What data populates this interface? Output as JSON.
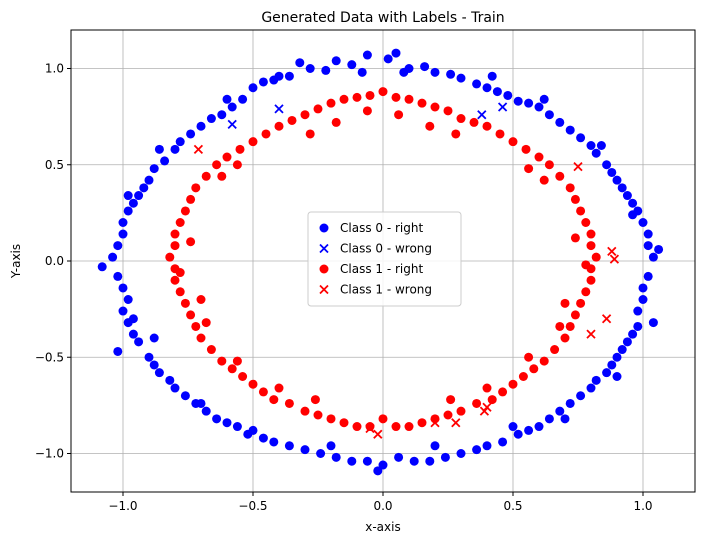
{
  "chart_data": {
    "type": "scatter",
    "title": "Generated Data with Labels - Train",
    "xlabel": "x-axis",
    "ylabel": "Y-axis",
    "xlim": [
      -1.2,
      1.2
    ],
    "ylim": [
      -1.2,
      1.2
    ],
    "xticks": [
      -1.0,
      -0.5,
      0.0,
      0.5,
      1.0
    ],
    "yticks": [
      -1.0,
      -0.5,
      0.0,
      0.5,
      1.0
    ],
    "xtick_labels": [
      "−1.0",
      "−0.5",
      "0.0",
      "0.5",
      "1.0"
    ],
    "ytick_labels": [
      "−1.0",
      "−0.5",
      "0.0",
      "0.5",
      "1.0"
    ],
    "grid": true,
    "legend_placement": "center",
    "series": [
      {
        "name": "Class 0 - right",
        "marker": "circle",
        "color": "#0000ff",
        "points": [
          [
            0.02,
            1.05
          ],
          [
            0.05,
            1.08
          ],
          [
            -0.06,
            1.07
          ],
          [
            0.1,
            1.0
          ],
          [
            -0.12,
            1.02
          ],
          [
            0.16,
            1.01
          ],
          [
            -0.18,
            1.04
          ],
          [
            0.2,
            0.98
          ],
          [
            -0.22,
            0.99
          ],
          [
            0.26,
            0.97
          ],
          [
            -0.28,
            1.0
          ],
          [
            0.3,
            0.95
          ],
          [
            -0.32,
            1.03
          ],
          [
            0.36,
            0.92
          ],
          [
            -0.36,
            0.96
          ],
          [
            0.4,
            0.9
          ],
          [
            -0.42,
            0.94
          ],
          [
            0.44,
            0.88
          ],
          [
            -0.46,
            0.93
          ],
          [
            0.48,
            0.86
          ],
          [
            -0.5,
            0.9
          ],
          [
            0.52,
            0.83
          ],
          [
            -0.54,
            0.84
          ],
          [
            0.56,
            0.82
          ],
          [
            -0.58,
            0.8
          ],
          [
            0.6,
            0.8
          ],
          [
            -0.62,
            0.76
          ],
          [
            0.64,
            0.76
          ],
          [
            -0.66,
            0.74
          ],
          [
            0.68,
            0.72
          ],
          [
            -0.7,
            0.7
          ],
          [
            0.72,
            0.68
          ],
          [
            -0.74,
            0.66
          ],
          [
            0.76,
            0.64
          ],
          [
            -0.78,
            0.62
          ],
          [
            0.8,
            0.6
          ],
          [
            -0.8,
            0.58
          ],
          [
            0.82,
            0.56
          ],
          [
            -0.84,
            0.52
          ],
          [
            0.86,
            0.5
          ],
          [
            -0.88,
            0.48
          ],
          [
            0.88,
            0.46
          ],
          [
            -0.9,
            0.42
          ],
          [
            0.9,
            0.42
          ],
          [
            -0.92,
            0.38
          ],
          [
            0.92,
            0.38
          ],
          [
            -0.94,
            0.34
          ],
          [
            0.94,
            0.34
          ],
          [
            -0.96,
            0.3
          ],
          [
            0.96,
            0.3
          ],
          [
            -0.98,
            0.26
          ],
          [
            0.98,
            0.26
          ],
          [
            -1.0,
            0.2
          ],
          [
            1.0,
            0.2
          ],
          [
            -1.0,
            0.14
          ],
          [
            1.02,
            0.14
          ],
          [
            -1.02,
            0.08
          ],
          [
            1.02,
            0.08
          ],
          [
            -1.04,
            0.02
          ],
          [
            1.04,
            0.02
          ],
          [
            -1.08,
            -0.03
          ],
          [
            1.06,
            0.06
          ],
          [
            -1.02,
            -0.08
          ],
          [
            1.02,
            -0.08
          ],
          [
            -1.0,
            -0.14
          ],
          [
            1.0,
            -0.14
          ],
          [
            -0.98,
            -0.2
          ],
          [
            1.0,
            -0.2
          ],
          [
            -1.0,
            -0.26
          ],
          [
            0.98,
            -0.26
          ],
          [
            -0.98,
            -0.32
          ],
          [
            1.04,
            -0.32
          ],
          [
            -0.96,
            -0.38
          ],
          [
            0.96,
            -0.38
          ],
          [
            -0.94,
            -0.42
          ],
          [
            0.94,
            -0.42
          ],
          [
            -1.02,
            -0.47
          ],
          [
            0.92,
            -0.46
          ],
          [
            -0.9,
            -0.5
          ],
          [
            0.9,
            -0.5
          ],
          [
            -0.88,
            -0.54
          ],
          [
            0.88,
            -0.54
          ],
          [
            -0.86,
            -0.58
          ],
          [
            0.86,
            -0.58
          ],
          [
            -0.82,
            -0.62
          ],
          [
            0.82,
            -0.62
          ],
          [
            -0.8,
            -0.66
          ],
          [
            0.8,
            -0.66
          ],
          [
            -0.76,
            -0.7
          ],
          [
            0.76,
            -0.7
          ],
          [
            -0.72,
            -0.74
          ],
          [
            0.72,
            -0.74
          ],
          [
            -0.68,
            -0.78
          ],
          [
            0.68,
            -0.78
          ],
          [
            -0.64,
            -0.82
          ],
          [
            0.64,
            -0.82
          ],
          [
            -0.6,
            -0.84
          ],
          [
            0.6,
            -0.86
          ],
          [
            -0.56,
            -0.86
          ],
          [
            0.56,
            -0.88
          ],
          [
            -0.52,
            -0.9
          ],
          [
            0.52,
            -0.9
          ],
          [
            -0.46,
            -0.92
          ],
          [
            0.46,
            -0.94
          ],
          [
            -0.42,
            -0.94
          ],
          [
            0.4,
            -0.96
          ],
          [
            -0.36,
            -0.96
          ],
          [
            0.36,
            -0.98
          ],
          [
            -0.3,
            -0.98
          ],
          [
            0.3,
            -1.0
          ],
          [
            -0.24,
            -1.0
          ],
          [
            0.24,
            -1.02
          ],
          [
            -0.18,
            -1.02
          ],
          [
            0.18,
            -1.04
          ],
          [
            -0.12,
            -1.04
          ],
          [
            0.12,
            -1.04
          ],
          [
            -0.06,
            -1.04
          ],
          [
            0.06,
            -1.02
          ],
          [
            0.0,
            -1.06
          ],
          [
            -0.02,
            -1.09
          ],
          [
            -0.98,
            0.34
          ],
          [
            0.98,
            -0.34
          ],
          [
            -0.86,
            0.58
          ],
          [
            0.84,
            0.6
          ],
          [
            -0.6,
            0.84
          ],
          [
            0.62,
            0.84
          ],
          [
            -0.4,
            0.96
          ],
          [
            0.42,
            0.96
          ],
          [
            -0.96,
            -0.3
          ],
          [
            0.96,
            0.24
          ],
          [
            -0.88,
            -0.4
          ],
          [
            0.9,
            -0.6
          ],
          [
            -0.7,
            -0.74
          ],
          [
            0.7,
            -0.82
          ],
          [
            -0.5,
            -0.88
          ],
          [
            0.5,
            -0.86
          ],
          [
            -0.2,
            -0.96
          ],
          [
            0.2,
            -0.96
          ],
          [
            -0.08,
            0.98
          ],
          [
            0.08,
            0.98
          ]
        ]
      },
      {
        "name": "Class 0 - wrong",
        "marker": "x",
        "color": "#0000ff",
        "points": [
          [
            -0.58,
            0.71
          ],
          [
            -0.4,
            0.79
          ],
          [
            0.38,
            0.76
          ],
          [
            0.46,
            0.8
          ]
        ]
      },
      {
        "name": "Class 1 - right",
        "marker": "circle",
        "color": "#ff0000",
        "points": [
          [
            0.0,
            0.88
          ],
          [
            0.05,
            0.85
          ],
          [
            -0.05,
            0.86
          ],
          [
            0.1,
            0.84
          ],
          [
            -0.1,
            0.85
          ],
          [
            0.15,
            0.82
          ],
          [
            -0.15,
            0.84
          ],
          [
            0.2,
            0.8
          ],
          [
            -0.2,
            0.82
          ],
          [
            0.25,
            0.78
          ],
          [
            -0.25,
            0.79
          ],
          [
            0.3,
            0.74
          ],
          [
            -0.3,
            0.76
          ],
          [
            0.35,
            0.72
          ],
          [
            -0.35,
            0.73
          ],
          [
            0.4,
            0.7
          ],
          [
            -0.4,
            0.7
          ],
          [
            0.45,
            0.66
          ],
          [
            -0.45,
            0.66
          ],
          [
            0.5,
            0.62
          ],
          [
            -0.5,
            0.62
          ],
          [
            0.55,
            0.58
          ],
          [
            -0.55,
            0.58
          ],
          [
            0.6,
            0.54
          ],
          [
            -0.6,
            0.54
          ],
          [
            0.64,
            0.5
          ],
          [
            -0.64,
            0.5
          ],
          [
            0.68,
            0.44
          ],
          [
            -0.68,
            0.44
          ],
          [
            0.72,
            0.38
          ],
          [
            -0.72,
            0.38
          ],
          [
            0.74,
            0.32
          ],
          [
            -0.74,
            0.32
          ],
          [
            0.76,
            0.26
          ],
          [
            -0.76,
            0.26
          ],
          [
            0.78,
            0.2
          ],
          [
            -0.78,
            0.2
          ],
          [
            0.8,
            0.14
          ],
          [
            -0.8,
            0.14
          ],
          [
            0.8,
            0.08
          ],
          [
            -0.8,
            0.08
          ],
          [
            0.82,
            0.02
          ],
          [
            -0.82,
            0.02
          ],
          [
            0.8,
            -0.04
          ],
          [
            -0.8,
            -0.04
          ],
          [
            0.8,
            -0.1
          ],
          [
            -0.8,
            -0.1
          ],
          [
            0.78,
            -0.16
          ],
          [
            -0.78,
            -0.16
          ],
          [
            0.76,
            -0.22
          ],
          [
            -0.76,
            -0.22
          ],
          [
            0.74,
            -0.28
          ],
          [
            -0.74,
            -0.28
          ],
          [
            0.72,
            -0.34
          ],
          [
            -0.72,
            -0.34
          ],
          [
            0.7,
            -0.4
          ],
          [
            -0.7,
            -0.4
          ],
          [
            0.66,
            -0.46
          ],
          [
            -0.66,
            -0.46
          ],
          [
            0.62,
            -0.52
          ],
          [
            -0.62,
            -0.52
          ],
          [
            0.58,
            -0.56
          ],
          [
            -0.58,
            -0.56
          ],
          [
            0.54,
            -0.6
          ],
          [
            -0.54,
            -0.6
          ],
          [
            0.5,
            -0.64
          ],
          [
            -0.5,
            -0.64
          ],
          [
            0.46,
            -0.68
          ],
          [
            -0.46,
            -0.68
          ],
          [
            0.42,
            -0.72
          ],
          [
            -0.42,
            -0.72
          ],
          [
            0.36,
            -0.74
          ],
          [
            -0.36,
            -0.74
          ],
          [
            0.3,
            -0.78
          ],
          [
            -0.3,
            -0.78
          ],
          [
            0.25,
            -0.8
          ],
          [
            -0.25,
            -0.8
          ],
          [
            0.2,
            -0.82
          ],
          [
            -0.2,
            -0.82
          ],
          [
            0.15,
            -0.84
          ],
          [
            -0.15,
            -0.84
          ],
          [
            0.1,
            -0.86
          ],
          [
            -0.1,
            -0.86
          ],
          [
            0.05,
            -0.86
          ],
          [
            -0.05,
            -0.86
          ],
          [
            0.0,
            -0.82
          ],
          [
            0.28,
            0.66
          ],
          [
            -0.28,
            0.66
          ],
          [
            0.56,
            0.48
          ],
          [
            -0.56,
            0.5
          ],
          [
            0.74,
            0.12
          ],
          [
            -0.74,
            0.1
          ],
          [
            0.7,
            -0.22
          ],
          [
            -0.7,
            -0.2
          ],
          [
            0.56,
            -0.5
          ],
          [
            -0.56,
            -0.52
          ],
          [
            0.26,
            -0.72
          ],
          [
            -0.26,
            -0.72
          ],
          [
            0.06,
            0.76
          ],
          [
            -0.06,
            0.78
          ],
          [
            0.62,
            0.42
          ],
          [
            -0.62,
            0.44
          ],
          [
            0.68,
            -0.34
          ],
          [
            -0.68,
            -0.32
          ],
          [
            0.4,
            -0.66
          ],
          [
            -0.4,
            -0.66
          ],
          [
            0.18,
            0.7
          ],
          [
            -0.18,
            0.72
          ],
          [
            0.78,
            -0.02
          ],
          [
            -0.78,
            -0.06
          ]
        ]
      },
      {
        "name": "Class 1 - wrong",
        "marker": "x",
        "color": "#ff0000",
        "points": [
          [
            -0.71,
            0.58
          ],
          [
            0.75,
            0.49
          ],
          [
            0.88,
            0.05
          ],
          [
            0.89,
            0.01
          ],
          [
            0.86,
            -0.3
          ],
          [
            0.8,
            -0.38
          ],
          [
            0.4,
            -0.76
          ],
          [
            0.39,
            -0.78
          ],
          [
            0.28,
            -0.84
          ],
          [
            0.2,
            -0.84
          ],
          [
            -0.05,
            -0.87
          ],
          [
            -0.02,
            -0.9
          ]
        ]
      }
    ]
  }
}
